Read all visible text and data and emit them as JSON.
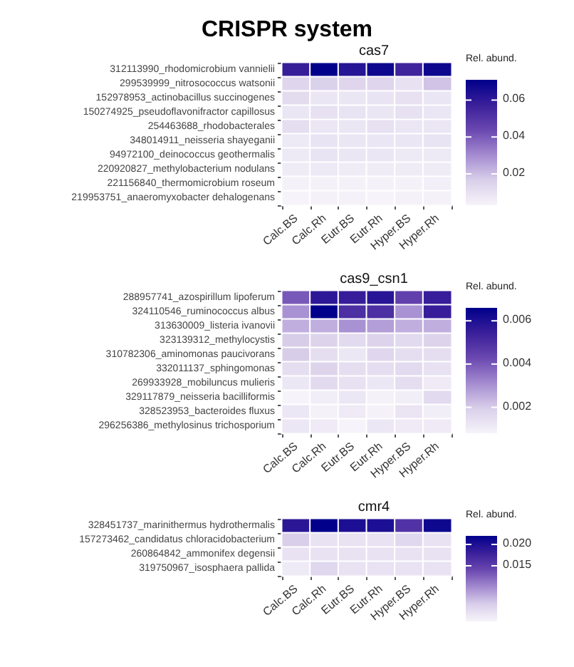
{
  "chart_data": [
    {
      "type": "heatmap",
      "title": "CRISPR system",
      "subtitle": "cas7",
      "clabel": "Rel. abund.",
      "categories": [
        "Calc.BS",
        "Calc.Rh",
        "Eutr.BS",
        "Eutr.Rh",
        "Hyper.BS",
        "Hyper.Rh"
      ],
      "y_categories": [
        "312113990_rhodomicrobium vannielii",
        "299539999_nitrosococcus watsonii",
        "152978953_actinobacillus succinogenes",
        "150274925_pseudoflavonifractor capillosus",
        "254463688_rhodobacterales",
        "348014911_neisseria shayeganii",
        "94972100_deinococcus geothermalis",
        "220920827_methylobacterium nodulans",
        "221156840_thermomicrobium roseum",
        "219953751_anaeromyxobacter dehalogenans"
      ],
      "cells": [
        [
          0.058,
          0.071,
          0.062,
          0.068,
          0.056,
          0.068
        ],
        [
          0.014,
          0.016,
          0.014,
          0.014,
          0.01,
          0.019
        ],
        [
          0.012,
          0.008,
          0.008,
          0.009,
          0.01,
          0.008
        ],
        [
          0.008,
          0.01,
          0.009,
          0.008,
          0.01,
          0.008
        ],
        [
          0.011,
          0.008,
          0.008,
          0.01,
          0.008,
          0.008
        ],
        [
          0.007,
          0.009,
          0.008,
          0.008,
          0.008,
          0.009
        ],
        [
          0.007,
          0.009,
          0.008,
          0.008,
          0.007,
          0.007
        ],
        [
          0.006,
          0.007,
          0.006,
          0.006,
          0.006,
          0.006
        ],
        [
          0.004,
          0.004,
          0.004,
          0.004,
          0.004,
          0.005
        ],
        [
          0.003,
          0.004,
          0.004,
          0.003,
          0.004,
          0.004
        ]
      ],
      "clim": [
        0.003,
        0.071
      ],
      "cticks": [
        {
          "value": 0.02,
          "label": "0.02"
        },
        {
          "value": 0.04,
          "label": "0.04"
        },
        {
          "value": 0.06,
          "label": "0.06"
        }
      ]
    },
    {
      "type": "heatmap",
      "title": "cas9_csn1",
      "clabel": "Rel. abund.",
      "categories": [
        "Calc.BS",
        "Calc.Rh",
        "Eutr.BS",
        "Eutr.Rh",
        "Hyper.BS",
        "Hyper.Rh"
      ],
      "y_categories": [
        "288957741_azospirillum lipoferum",
        "324110546_ruminococcus albus",
        "313630009_listeria ivanovii",
        "323139312_methylocystis",
        "310782306_aminomonas paucivorans",
        "332011137_sphingomonas",
        "269933928_mobiluncus mulieris",
        "329117879_neisseria bacilliformis",
        "328523953_bacteroides fluxus",
        "296256386_methylosinus trichosporium"
      ],
      "cells": [
        [
          0.004,
          0.0057,
          0.0055,
          0.0058,
          0.0045,
          0.0055
        ],
        [
          0.003,
          0.0066,
          0.005,
          0.005,
          0.003,
          0.0055
        ],
        [
          0.0025,
          0.0025,
          0.003,
          0.0028,
          0.0025,
          0.0025
        ],
        [
          0.002,
          0.0018,
          0.0016,
          0.0018,
          0.0016,
          0.0018
        ],
        [
          0.002,
          0.0015,
          0.0012,
          0.0017,
          0.0015,
          0.0015
        ],
        [
          0.0015,
          0.0018,
          0.0015,
          0.0015,
          0.0016,
          0.0014
        ],
        [
          0.0012,
          0.0016,
          0.0014,
          0.0012,
          0.0015,
          0.0011
        ],
        [
          0.0008,
          0.001,
          0.0012,
          0.0009,
          0.001,
          0.0016
        ],
        [
          0.0012,
          0.0009,
          0.0011,
          0.0009,
          0.0013,
          0.001
        ],
        [
          0.0012,
          0.0011,
          0.0008,
          0.0012,
          0.0011,
          0.0011
        ]
      ],
      "clim": [
        0.0008,
        0.0066
      ],
      "cticks": [
        0.002,
        0.004,
        0.006
      ]
    },
    {
      "type": "heatmap",
      "title": "cmr4",
      "clabel": "Rel. abund.",
      "categories": [
        "Calc.BS",
        "Calc.Rh",
        "Eutr.BS",
        "Eutr.Rh",
        "Hyper.BS",
        "Hyper.Rh"
      ],
      "y_categories": [
        "328451737_marinithermus hydrothermalis",
        "157273462_candidatus chloracidobacterium",
        "260864842_ammonifex degensii",
        "319750967_isosphaera pallida"
      ],
      "cells": [
        [
          0.019,
          0.022,
          0.02,
          0.02,
          0.016,
          0.021
        ],
        [
          0.006,
          0.004,
          0.004,
          0.004,
          0.005,
          0.004
        ],
        [
          0.004,
          0.004,
          0.004,
          0.004,
          0.004,
          0.004
        ],
        [
          0.003,
          0.005,
          0.004,
          0.004,
          0.004,
          0.004
        ]
      ],
      "clim": [
        0.002,
        0.022
      ],
      "cticks": [
        {
          "value": 0.015,
          "label": "0.015"
        },
        {
          "value": 0.02,
          "label": "0.020"
        }
      ]
    }
  ]
}
